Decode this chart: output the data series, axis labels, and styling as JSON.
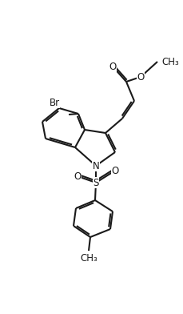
{
  "bg_color": "#ffffff",
  "line_color": "#1a1a1a",
  "line_width": 1.5,
  "figsize": [
    2.3,
    3.92
  ],
  "dpi": 100,
  "font_size": 8.5,
  "xlim": [
    0,
    23
  ],
  "ylim": [
    0,
    39.2
  ]
}
